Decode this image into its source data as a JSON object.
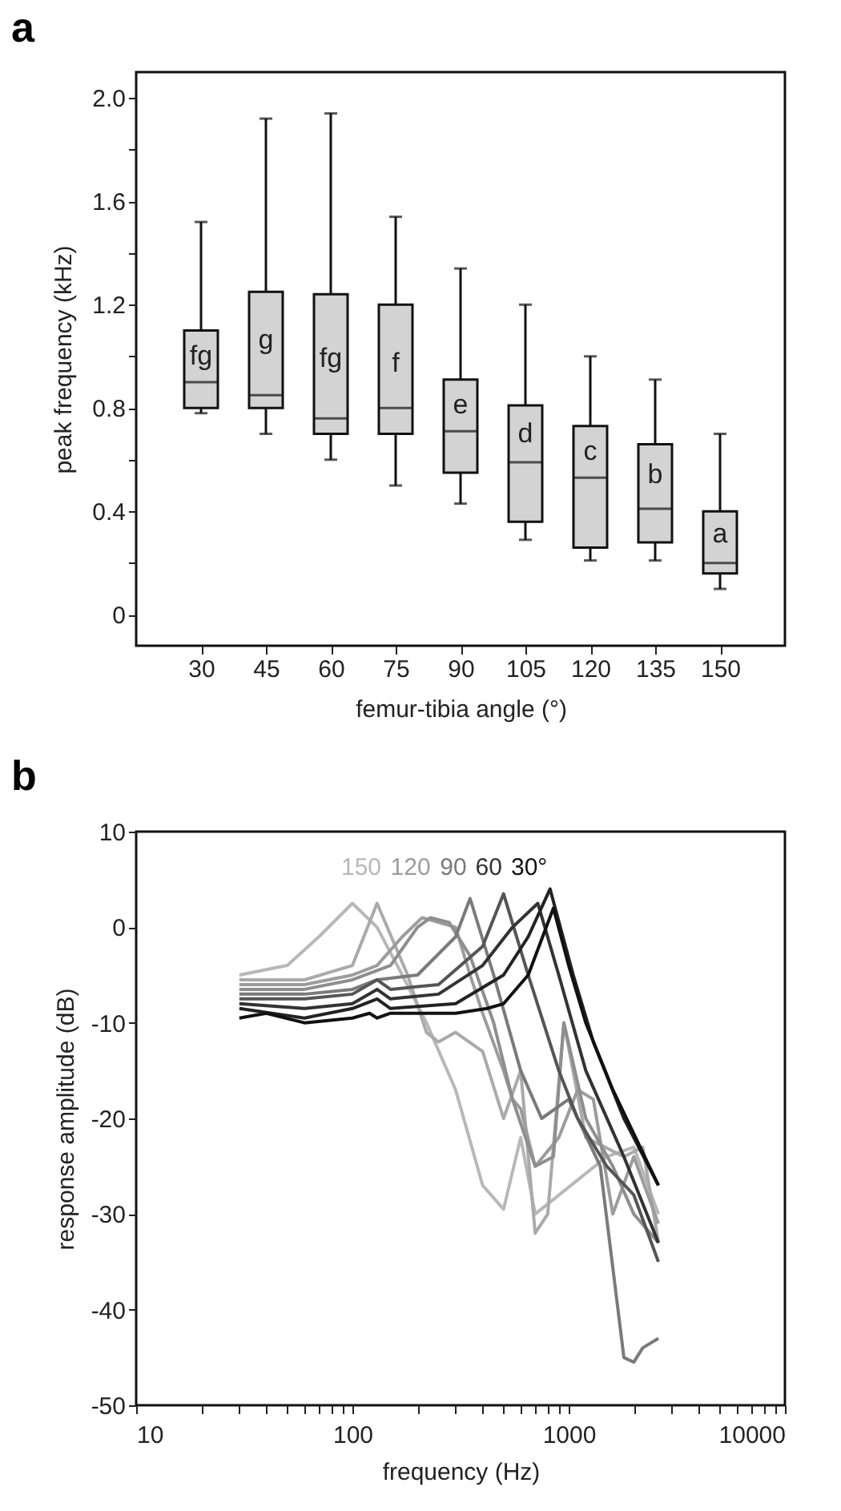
{
  "chart_data": [
    {
      "type": "box",
      "title": "a",
      "xlabel": "femur-tibia angle (°)",
      "ylabel": "peak frequency (kHz)",
      "categories": [
        "30",
        "45",
        "60",
        "75",
        "90",
        "105",
        "120",
        "135",
        "150"
      ],
      "boxes": [
        {
          "low": 0.78,
          "q1": 0.8,
          "median": 0.9,
          "q3": 1.1,
          "high": 1.52
        },
        {
          "low": 0.7,
          "q1": 0.8,
          "median": 0.85,
          "q3": 1.25,
          "high": 1.92
        },
        {
          "low": 0.6,
          "q1": 0.7,
          "median": 0.76,
          "q3": 1.24,
          "high": 1.94
        },
        {
          "low": 0.5,
          "q1": 0.7,
          "median": 0.8,
          "q3": 1.2,
          "high": 1.54
        },
        {
          "low": 0.43,
          "q1": 0.55,
          "median": 0.71,
          "q3": 0.91,
          "high": 1.34
        },
        {
          "low": 0.29,
          "q1": 0.36,
          "median": 0.59,
          "q3": 0.81,
          "high": 1.2
        },
        {
          "low": 0.21,
          "q1": 0.26,
          "median": 0.53,
          "q3": 0.73,
          "high": 1.0
        },
        {
          "low": 0.21,
          "q1": 0.28,
          "median": 0.41,
          "q3": 0.66,
          "high": 0.91
        },
        {
          "low": 0.1,
          "q1": 0.16,
          "median": 0.2,
          "q3": 0.4,
          "high": 0.7
        }
      ],
      "color": "#d3d3d3",
      "ylim": [
        -0.12,
        2.1
      ],
      "yticks": [
        0,
        {
          "value": 0.2,
          "label": null
        },
        {
          "value": 0.4,
          "label": "0.4"
        },
        {
          "value": 0.6,
          "label": null
        },
        0.8,
        {
          "value": 1.0,
          "label": null
        },
        1.2,
        {
          "value": 1.4,
          "label": null
        },
        1.6,
        {
          "value": 1.8,
          "label": null
        },
        {
          "value": 2,
          "label": "2.0"
        }
      ],
      "annotations": [
        {
          "text": "fg",
          "x": "30",
          "y": 1.0
        },
        {
          "text": "g",
          "x": "45",
          "y": 1.06
        },
        {
          "text": "fg",
          "x": "60",
          "y": 0.99
        },
        {
          "text": "f",
          "x": "75",
          "y": 0.97
        },
        {
          "text": "e",
          "x": "90",
          "y": 0.81
        },
        {
          "text": "d",
          "x": "105",
          "y": 0.7
        },
        {
          "text": "c",
          "x": "120",
          "y": 0.63
        },
        {
          "text": "b",
          "x": "135",
          "y": 0.54
        },
        {
          "text": "a",
          "x": "150",
          "y": 0.31
        }
      ],
      "grid": false
    },
    {
      "type": "line",
      "title": "b",
      "xlabel": "frequency (Hz)",
      "ylabel": "response amplitude (dB)",
      "log": "x",
      "xlim": [
        10,
        10000
      ],
      "ylim": [
        -50,
        10
      ],
      "xticks": [
        10,
        {
          "value": 20,
          "label": null
        },
        {
          "value": 30,
          "label": null
        },
        {
          "value": 40,
          "label": null
        },
        {
          "value": 50,
          "label": null
        },
        {
          "value": 60,
          "label": null
        },
        {
          "value": 70,
          "label": null
        },
        {
          "value": 80,
          "label": null
        },
        {
          "value": 90,
          "label": null
        },
        100,
        {
          "value": 200,
          "label": null
        },
        {
          "value": 300,
          "label": null
        },
        {
          "value": 400,
          "label": null
        },
        {
          "value": 500,
          "label": null
        },
        {
          "value": 600,
          "label": null
        },
        {
          "value": 700,
          "label": null
        },
        {
          "value": 800,
          "label": null
        },
        {
          "value": 900,
          "label": null
        },
        1000,
        {
          "value": 2000,
          "label": null
        },
        {
          "value": 3000,
          "label": null
        },
        {
          "value": 4000,
          "label": null
        },
        {
          "value": 5000,
          "label": null
        },
        {
          "value": 6000,
          "label": null
        },
        {
          "value": 7000,
          "label": null
        },
        {
          "value": 8000,
          "label": null
        },
        {
          "value": 9000,
          "label": null
        },
        10000
      ],
      "yticks": [
        -50,
        -40,
        -30,
        -20,
        -10,
        0,
        10
      ],
      "grid": false,
      "legend": "top",
      "line_style": "solid",
      "series": [
        {
          "name": "150",
          "color": "#b8b8b8",
          "x": [
            30,
            50,
            70,
            100,
            130,
            170,
            220,
            300,
            400,
            500,
            600,
            700,
            1500,
            2000,
            2600
          ],
          "values": [
            -5,
            -4,
            -1,
            2.5,
            0,
            -5,
            -10,
            -17,
            -27,
            -29.5,
            -22,
            -30,
            -24,
            -23,
            -30
          ]
        },
        {
          "color": "#aaaaaa",
          "x": [
            30,
            60,
            100,
            130,
            180,
            220,
            250,
            300,
            400,
            500,
            600,
            700,
            800,
            950,
            1200,
            1800,
            2200,
            2600
          ],
          "values": [
            -5.5,
            -5.5,
            -4,
            2.5,
            -5,
            -11,
            -12,
            -11,
            -13,
            -20,
            -15,
            -32,
            -30,
            -10,
            -22,
            -24,
            -23,
            -33
          ]
        },
        {
          "name": "120",
          "color": "#9c9c9c",
          "x": [
            30,
            60,
            100,
            130,
            170,
            210,
            300,
            350,
            400,
            500,
            550,
            600,
            700,
            900,
            1100,
            1300,
            1600,
            2000,
            2600
          ],
          "values": [
            -6,
            -6,
            -5,
            -4,
            -1,
            1,
            0,
            -5,
            -9,
            -15,
            -18,
            -19,
            -25,
            -22,
            -17,
            -18,
            -30,
            -24,
            -31
          ]
        },
        {
          "color": "#8e8e8e",
          "x": [
            30,
            60,
            100,
            150,
            200,
            230,
            280,
            350,
            450,
            550,
            700,
            850,
            950,
            1200,
            1600,
            2000,
            2600
          ],
          "values": [
            -6.5,
            -6.5,
            -5.5,
            -4,
            0,
            1,
            0.5,
            -3,
            -10,
            -18,
            -25,
            -24,
            -10,
            -20,
            -25,
            -30,
            -33
          ]
        },
        {
          "name": "90",
          "color": "#7a7a7a",
          "x": [
            30,
            60,
            100,
            130,
            200,
            300,
            350,
            450,
            600,
            750,
            1000,
            1400,
            1800,
            2000,
            2200,
            2600
          ],
          "values": [
            -7,
            -7,
            -6.5,
            -5.5,
            -5,
            -1,
            3,
            -5,
            -15,
            -20,
            -18,
            -25,
            -45,
            -45.5,
            -44,
            -43
          ]
        },
        {
          "color": "#555555",
          "x": [
            30,
            60,
            100,
            130,
            150,
            250,
            400,
            500,
            650,
            900,
            1100,
            1500,
            2000,
            2600
          ],
          "values": [
            -7.5,
            -7.5,
            -7,
            -5.5,
            -6.5,
            -6,
            -2,
            3.5,
            -5,
            -15,
            -20,
            -25,
            -28,
            -35
          ]
        },
        {
          "name": "60",
          "color": "#333333",
          "x": [
            30,
            60,
            100,
            130,
            150,
            250,
            400,
            550,
            720,
            900,
            1200,
            1800,
            2600
          ],
          "values": [
            -8,
            -8.5,
            -8,
            -6.5,
            -7.5,
            -7,
            -4,
            0,
            2.5,
            -5,
            -15,
            -24,
            -33
          ]
        },
        {
          "color": "#222222",
          "x": [
            30,
            60,
            100,
            130,
            150,
            300,
            500,
            650,
            820,
            1050,
            1300,
            1800,
            2600
          ],
          "values": [
            -8.5,
            -9.5,
            -8.5,
            -7.5,
            -8.5,
            -8,
            -5,
            -1,
            4,
            -5,
            -12,
            -20,
            -27
          ]
        },
        {
          "name": "30°",
          "color": "#111111",
          "x": [
            30,
            40,
            60,
            100,
            120,
            130,
            150,
            300,
            420,
            500,
            650,
            850,
            1000,
            1200,
            1600,
            2600
          ],
          "values": [
            -9.5,
            -9,
            -10,
            -9.5,
            -9,
            -9.5,
            -9,
            -9,
            -8.5,
            -8,
            -5,
            2,
            -4,
            -10,
            -17,
            -27
          ]
        }
      ]
    }
  ]
}
